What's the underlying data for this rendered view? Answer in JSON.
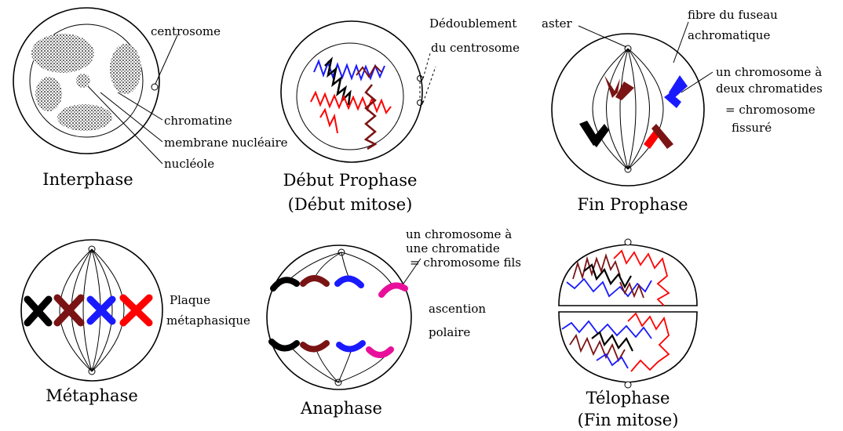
{
  "colors": {
    "black": "#000000",
    "brown": "#7a1414",
    "blue": "#1a1aff",
    "red": "#ff0000",
    "pink": "#e8109a"
  },
  "stages": {
    "interphase": {
      "title": "Interphase",
      "labels": {
        "centrosome": "centrosome",
        "chromatine": "chromatine",
        "membrane": "membrane nucléaire",
        "nucleole": "nucléole"
      }
    },
    "debut_prophase": {
      "title_line1": "Début Prophase",
      "title_line2": "(Début mitose)",
      "labels": {
        "dedoublement_1": "Dédoublement",
        "dedoublement_2": "du centrosome"
      }
    },
    "fin_prophase": {
      "title": "Fin Prophase",
      "labels": {
        "aster": "aster",
        "fibre_1": "fibre du fuseau",
        "fibre_2": "achromatique",
        "chrom2_1": "un chromosome à",
        "chrom2_2": "deux chromatides",
        "chrom2_3": "= chromosome",
        "chrom2_4": "fissuré"
      }
    },
    "metaphase": {
      "title": "Métaphase",
      "labels": {
        "plaque_1": "Plaque",
        "plaque_2": "métaphasique"
      }
    },
    "anaphase": {
      "title": "Anaphase",
      "labels": {
        "chrom1_1": "un chromosome à",
        "chrom1_2": "une chromatide",
        "chrom1_3": "= chromosome fils",
        "ascention_1": "ascention",
        "ascention_2": "polaire"
      }
    },
    "telophase": {
      "title_line1": "Télophase",
      "title_line2": "(Fin mitose)"
    }
  }
}
